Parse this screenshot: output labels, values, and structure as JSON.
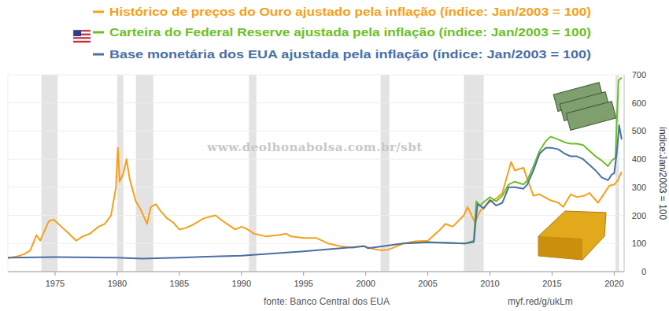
{
  "chart_data": {
    "type": "line",
    "legend": "top",
    "grid": true,
    "xlim": [
      1971.2,
      2020.8
    ],
    "xticks": [
      1975,
      1980,
      1985,
      1990,
      1995,
      2000,
      2005,
      2010,
      2015,
      2020
    ],
    "ylim": [
      0,
      700
    ],
    "yticks": [
      0,
      100,
      200,
      300,
      400,
      500,
      600,
      700
    ],
    "y_label": "índice:Jan/2003 = 100",
    "watermark": "www.deolhonabolsa.com.br/sbt",
    "source": "fonte: Banco Central dos EUA",
    "link": "myf.red/g/ukLm",
    "shaded_periods": [
      [
        1973.9,
        1975.2
      ],
      [
        1980.0,
        1980.5
      ],
      [
        1981.5,
        1982.9
      ],
      [
        1990.6,
        1991.2
      ],
      [
        2001.2,
        2001.9
      ],
      [
        2007.9,
        2009.5
      ],
      [
        2020.1,
        2020.4
      ]
    ],
    "series": [
      {
        "name": "Histórico de preços do Ouro ajustado pela inflação (índice: Jan/2003 = 100)",
        "color": "#f5a01a",
        "x": [
          1971.2,
          1972.0,
          1972.5,
          1973.0,
          1973.5,
          1973.8,
          1974.2,
          1974.5,
          1974.9,
          1975.5,
          1976.0,
          1976.7,
          1977.2,
          1977.8,
          1978.5,
          1979.0,
          1979.5,
          1979.9,
          1980.05,
          1980.2,
          1980.5,
          1980.75,
          1981.0,
          1981.5,
          1981.9,
          1982.4,
          1982.7,
          1983.1,
          1983.5,
          1984.0,
          1984.5,
          1985.0,
          1985.5,
          1986.0,
          1987.0,
          1987.9,
          1988.5,
          1989.0,
          1989.5,
          1990.0,
          1990.5,
          1991.0,
          1992.0,
          1993.0,
          1993.6,
          1994.0,
          1995.0,
          1996.0,
          1997.0,
          1998.0,
          1999.0,
          1999.8,
          2000.5,
          2001.2,
          2001.8,
          2002.5,
          2003.0,
          2004.0,
          2005.0,
          2006.0,
          2006.4,
          2007.0,
          2007.9,
          2008.2,
          2008.8,
          2009.2,
          2009.9,
          2010.5,
          2011.0,
          2011.7,
          2012.0,
          2012.7,
          2013.0,
          2013.5,
          2014.0,
          2014.8,
          2015.5,
          2015.9,
          2016.5,
          2017.0,
          2017.6,
          2018.0,
          2018.7,
          2019.0,
          2019.6,
          2020.0,
          2020.3,
          2020.6
        ],
        "values": [
          48,
          55,
          62,
          75,
          130,
          110,
          150,
          180,
          185,
          160,
          140,
          110,
          125,
          135,
          160,
          170,
          200,
          300,
          440,
          320,
          350,
          400,
          330,
          250,
          220,
          170,
          230,
          240,
          215,
          190,
          175,
          150,
          155,
          165,
          190,
          200,
          180,
          165,
          150,
          160,
          150,
          135,
          125,
          130,
          135,
          125,
          120,
          120,
          100,
          90,
          85,
          92,
          82,
          76,
          78,
          90,
          100,
          108,
          110,
          150,
          170,
          160,
          200,
          230,
          175,
          215,
          245,
          260,
          280,
          390,
          360,
          370,
          330,
          270,
          275,
          255,
          245,
          230,
          275,
          265,
          270,
          280,
          245,
          265,
          305,
          310,
          325,
          355
        ]
      },
      {
        "name": "Carteira do Federal Reserve ajustada pela inflação (índice: Jan/2003 = 100)",
        "color": "#6cc024",
        "x": [
          2003.0,
          2005.0,
          2008.0,
          2008.7,
          2008.9,
          2009.2,
          2009.7,
          2010.0,
          2010.5,
          2011.0,
          2011.5,
          2012.0,
          2012.7,
          2013.0,
          2013.5,
          2014.0,
          2014.5,
          2014.9,
          2015.5,
          2016.0,
          2016.5,
          2017.0,
          2017.5,
          2018.0,
          2018.5,
          2019.0,
          2019.5,
          2019.8,
          2020.1,
          2020.2,
          2020.35,
          2020.6
        ],
        "values": [
          100,
          105,
          100,
          110,
          250,
          235,
          255,
          265,
          250,
          270,
          310,
          320,
          310,
          325,
          375,
          430,
          465,
          480,
          470,
          460,
          455,
          455,
          450,
          430,
          410,
          395,
          375,
          395,
          405,
          530,
          680,
          690
        ]
      },
      {
        "name": "Base monetária dos EUA ajustada pela inflação (índice: Jan/2003 = 100)",
        "color": "#4a6fa5",
        "x": [
          1971.2,
          1975.0,
          1980.0,
          1982.0,
          1985.0,
          1990.0,
          1995.0,
          1999.9,
          2000.2,
          2003.0,
          2005.0,
          2008.0,
          2008.7,
          2008.9,
          2009.0,
          2009.5,
          2010.0,
          2010.5,
          2011.0,
          2011.5,
          2012.0,
          2012.7,
          2013.0,
          2013.5,
          2014.0,
          2014.5,
          2015.0,
          2015.5,
          2016.0,
          2016.5,
          2017.0,
          2017.5,
          2018.0,
          2018.5,
          2019.0,
          2019.5,
          2019.8,
          2020.0,
          2020.2,
          2020.4,
          2020.6
        ],
        "values": [
          50,
          52,
          50,
          46,
          50,
          57,
          72,
          90,
          83,
          100,
          104,
          100,
          105,
          200,
          240,
          225,
          255,
          235,
          245,
          300,
          300,
          295,
          310,
          360,
          420,
          440,
          440,
          435,
          420,
          410,
          410,
          400,
          380,
          360,
          335,
          325,
          345,
          350,
          420,
          520,
          470
        ]
      }
    ]
  }
}
